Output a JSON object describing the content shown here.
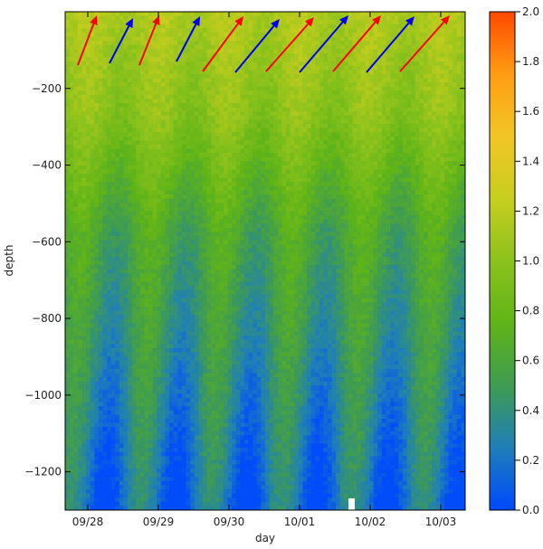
{
  "chart_data": {
    "type": "heatmap",
    "xlabel": "day",
    "ylabel": "depth",
    "x_ticks": [
      "09/28",
      "09/29",
      "09/30",
      "10/01",
      "10/02",
      "10/03"
    ],
    "y_ticks": [
      -200,
      -400,
      -600,
      -800,
      -1000,
      -1200
    ],
    "ylim": [
      -1300,
      0
    ],
    "grid": false,
    "colorbar": {
      "vmin": 0.0,
      "vmax": 2.0,
      "ticks": [
        "0.0",
        "0.2",
        "0.4",
        "0.6",
        "0.8",
        "1.0",
        "1.2",
        "1.4",
        "1.6",
        "1.8",
        "2.0"
      ],
      "colors": [
        "#0048ff",
        "#1f7fb8",
        "#3f9c52",
        "#5fb418",
        "#8cc21c",
        "#c7ce1e",
        "#f2c624",
        "#ff9d12",
        "#ff4800"
      ]
    },
    "arrows": [
      {
        "color": "#ff0000"
      },
      {
        "color": "#0000ee"
      },
      {
        "color": "#ff0000"
      },
      {
        "color": "#0000ee"
      },
      {
        "color": "#ff0000"
      },
      {
        "color": "#0000ee"
      },
      {
        "color": "#ff0000"
      },
      {
        "color": "#0000ee"
      },
      {
        "color": "#ff0000"
      },
      {
        "color": "#0000ee"
      },
      {
        "color": "#ff0000"
      }
    ]
  }
}
